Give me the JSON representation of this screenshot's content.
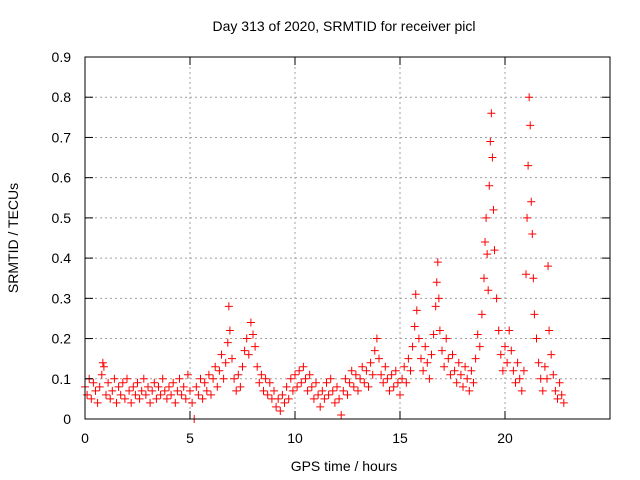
{
  "chart_data": {
    "type": "scatter",
    "title": "Day 313 of 2020, SRMTID for receiver picl",
    "xlabel": "GPS time / hours",
    "ylabel": "SRMTID / TECUs",
    "xlim": [
      0,
      25
    ],
    "ylim": [
      0,
      0.9
    ],
    "xticks": [
      0,
      5,
      10,
      15,
      20
    ],
    "xtick_labels": [
      "0",
      "5",
      "10",
      "15",
      "20"
    ],
    "yticks": [
      0,
      0.1,
      0.2,
      0.3,
      0.4,
      0.5,
      0.6,
      0.7,
      0.8,
      0.9
    ],
    "ytick_labels": [
      "0",
      "0.1",
      "0.2",
      "0.3",
      "0.4",
      "0.5",
      "0.6",
      "0.7",
      "0.8",
      "0.9"
    ],
    "grid": true,
    "marker": "+",
    "series_color": "#ff0000",
    "series": [
      {
        "name": "SRMTID",
        "points": [
          [
            0.0,
            0.08
          ],
          [
            0.1,
            0.06
          ],
          [
            0.2,
            0.1
          ],
          [
            0.3,
            0.05
          ],
          [
            0.4,
            0.09
          ],
          [
            0.5,
            0.07
          ],
          [
            0.6,
            0.04
          ],
          [
            0.7,
            0.08
          ],
          [
            0.8,
            0.11
          ],
          [
            0.85,
            0.14
          ],
          [
            0.9,
            0.13
          ],
          [
            1.0,
            0.06
          ],
          [
            1.1,
            0.09
          ],
          [
            1.2,
            0.05
          ],
          [
            1.3,
            0.07
          ],
          [
            1.4,
            0.1
          ],
          [
            1.5,
            0.04
          ],
          [
            1.6,
            0.08
          ],
          [
            1.7,
            0.06
          ],
          [
            1.8,
            0.09
          ],
          [
            1.9,
            0.05
          ],
          [
            2.0,
            0.1
          ],
          [
            2.1,
            0.07
          ],
          [
            2.2,
            0.04
          ],
          [
            2.3,
            0.08
          ],
          [
            2.4,
            0.06
          ],
          [
            2.5,
            0.09
          ],
          [
            2.6,
            0.05
          ],
          [
            2.7,
            0.07
          ],
          [
            2.8,
            0.1
          ],
          [
            2.9,
            0.06
          ],
          [
            3.0,
            0.08
          ],
          [
            3.1,
            0.04
          ],
          [
            3.2,
            0.07
          ],
          [
            3.3,
            0.09
          ],
          [
            3.4,
            0.05
          ],
          [
            3.5,
            0.08
          ],
          [
            3.6,
            0.06
          ],
          [
            3.7,
            0.1
          ],
          [
            3.8,
            0.07
          ],
          [
            3.9,
            0.05
          ],
          [
            4.0,
            0.08
          ],
          [
            4.1,
            0.06
          ],
          [
            4.2,
            0.09
          ],
          [
            4.3,
            0.04
          ],
          [
            4.4,
            0.07
          ],
          [
            4.5,
            0.1
          ],
          [
            4.6,
            0.06
          ],
          [
            4.7,
            0.08
          ],
          [
            4.8,
            0.05
          ],
          [
            4.9,
            0.11
          ],
          [
            5.0,
            0.07
          ],
          [
            5.1,
            0.04
          ],
          [
            5.2,
            0.0
          ],
          [
            5.3,
            0.08
          ],
          [
            5.4,
            0.06
          ],
          [
            5.5,
            0.1
          ],
          [
            5.6,
            0.05
          ],
          [
            5.7,
            0.09
          ],
          [
            5.8,
            0.07
          ],
          [
            5.9,
            0.11
          ],
          [
            6.0,
            0.06
          ],
          [
            6.1,
            0.1
          ],
          [
            6.2,
            0.13
          ],
          [
            6.3,
            0.08
          ],
          [
            6.4,
            0.12
          ],
          [
            6.5,
            0.16
          ],
          [
            6.6,
            0.1
          ],
          [
            6.7,
            0.14
          ],
          [
            6.8,
            0.19
          ],
          [
            6.85,
            0.28
          ],
          [
            6.9,
            0.22
          ],
          [
            7.0,
            0.15
          ],
          [
            7.1,
            0.1
          ],
          [
            7.2,
            0.07
          ],
          [
            7.3,
            0.11
          ],
          [
            7.4,
            0.08
          ],
          [
            7.5,
            0.13
          ],
          [
            7.6,
            0.17
          ],
          [
            7.7,
            0.2
          ],
          [
            7.8,
            0.16
          ],
          [
            7.9,
            0.24
          ],
          [
            8.0,
            0.21
          ],
          [
            8.1,
            0.18
          ],
          [
            8.2,
            0.13
          ],
          [
            8.3,
            0.09
          ],
          [
            8.4,
            0.11
          ],
          [
            8.5,
            0.07
          ],
          [
            8.6,
            0.1
          ],
          [
            8.7,
            0.06
          ],
          [
            8.8,
            0.09
          ],
          [
            8.9,
            0.05
          ],
          [
            9.0,
            0.07
          ],
          [
            9.1,
            0.03
          ],
          [
            9.2,
            0.05
          ],
          [
            9.3,
            0.02
          ],
          [
            9.4,
            0.06
          ],
          [
            9.5,
            0.04
          ],
          [
            9.6,
            0.08
          ],
          [
            9.7,
            0.05
          ],
          [
            9.8,
            0.1
          ],
          [
            9.9,
            0.07
          ],
          [
            10.0,
            0.11
          ],
          [
            10.1,
            0.08
          ],
          [
            10.2,
            0.12
          ],
          [
            10.3,
            0.09
          ],
          [
            10.4,
            0.13
          ],
          [
            10.5,
            0.1
          ],
          [
            10.6,
            0.07
          ],
          [
            10.7,
            0.11
          ],
          [
            10.8,
            0.08
          ],
          [
            10.9,
            0.05
          ],
          [
            11.0,
            0.09
          ],
          [
            11.1,
            0.06
          ],
          [
            11.2,
            0.03
          ],
          [
            11.3,
            0.07
          ],
          [
            11.4,
            0.05
          ],
          [
            11.5,
            0.09
          ],
          [
            11.6,
            0.06
          ],
          [
            11.7,
            0.1
          ],
          [
            11.8,
            0.07
          ],
          [
            11.9,
            0.04
          ],
          [
            12.0,
            0.08
          ],
          [
            12.1,
            0.05
          ],
          [
            12.2,
            0.01
          ],
          [
            12.3,
            0.07
          ],
          [
            12.4,
            0.1
          ],
          [
            12.5,
            0.06
          ],
          [
            12.6,
            0.09
          ],
          [
            12.7,
            0.12
          ],
          [
            12.8,
            0.08
          ],
          [
            12.9,
            0.11
          ],
          [
            13.0,
            0.07
          ],
          [
            13.1,
            0.1
          ],
          [
            13.2,
            0.13
          ],
          [
            13.3,
            0.09
          ],
          [
            13.4,
            0.12
          ],
          [
            13.5,
            0.08
          ],
          [
            13.6,
            0.14
          ],
          [
            13.7,
            0.11
          ],
          [
            13.8,
            0.17
          ],
          [
            13.9,
            0.2
          ],
          [
            14.0,
            0.15
          ],
          [
            14.1,
            0.11
          ],
          [
            14.2,
            0.09
          ],
          [
            14.3,
            0.13
          ],
          [
            14.4,
            0.1
          ],
          [
            14.5,
            0.07
          ],
          [
            14.6,
            0.11
          ],
          [
            14.7,
            0.08
          ],
          [
            14.8,
            0.12
          ],
          [
            14.9,
            0.09
          ],
          [
            15.0,
            0.06
          ],
          [
            15.1,
            0.1
          ],
          [
            15.2,
            0.13
          ],
          [
            15.3,
            0.09
          ],
          [
            15.4,
            0.15
          ],
          [
            15.5,
            0.12
          ],
          [
            15.6,
            0.18
          ],
          [
            15.7,
            0.23
          ],
          [
            15.75,
            0.31
          ],
          [
            15.8,
            0.27
          ],
          [
            15.9,
            0.2
          ],
          [
            16.0,
            0.15
          ],
          [
            16.1,
            0.12
          ],
          [
            16.2,
            0.18
          ],
          [
            16.3,
            0.14
          ],
          [
            16.4,
            0.1
          ],
          [
            16.5,
            0.16
          ],
          [
            16.6,
            0.21
          ],
          [
            16.7,
            0.28
          ],
          [
            16.75,
            0.34
          ],
          [
            16.8,
            0.39
          ],
          [
            16.85,
            0.3
          ],
          [
            16.9,
            0.22
          ],
          [
            17.0,
            0.17
          ],
          [
            17.1,
            0.13
          ],
          [
            17.2,
            0.2
          ],
          [
            17.3,
            0.15
          ],
          [
            17.4,
            0.11
          ],
          [
            17.5,
            0.16
          ],
          [
            17.6,
            0.12
          ],
          [
            17.7,
            0.09
          ],
          [
            17.8,
            0.14
          ],
          [
            17.9,
            0.11
          ],
          [
            18.0,
            0.08
          ],
          [
            18.1,
            0.13
          ],
          [
            18.2,
            0.1
          ],
          [
            18.3,
            0.07
          ],
          [
            18.4,
            0.12
          ],
          [
            18.5,
            0.09
          ],
          [
            18.6,
            0.15
          ],
          [
            18.7,
            0.21
          ],
          [
            18.8,
            0.18
          ],
          [
            18.9,
            0.26
          ],
          [
            19.0,
            0.35
          ],
          [
            19.05,
            0.44
          ],
          [
            19.1,
            0.5
          ],
          [
            19.15,
            0.41
          ],
          [
            19.2,
            0.32
          ],
          [
            19.25,
            0.58
          ],
          [
            19.3,
            0.69
          ],
          [
            19.35,
            0.76
          ],
          [
            19.4,
            0.65
          ],
          [
            19.45,
            0.52
          ],
          [
            19.5,
            0.42
          ],
          [
            19.6,
            0.3
          ],
          [
            19.7,
            0.22
          ],
          [
            19.8,
            0.16
          ],
          [
            19.9,
            0.12
          ],
          [
            20.0,
            0.18
          ],
          [
            20.1,
            0.14
          ],
          [
            20.2,
            0.22
          ],
          [
            20.3,
            0.17
          ],
          [
            20.4,
            0.12
          ],
          [
            20.5,
            0.09
          ],
          [
            20.6,
            0.14
          ],
          [
            20.7,
            0.1
          ],
          [
            20.8,
            0.07
          ],
          [
            20.9,
            0.12
          ],
          [
            21.0,
            0.36
          ],
          [
            21.05,
            0.5
          ],
          [
            21.1,
            0.63
          ],
          [
            21.15,
            0.8
          ],
          [
            21.2,
            0.73
          ],
          [
            21.25,
            0.54
          ],
          [
            21.3,
            0.46
          ],
          [
            21.35,
            0.35
          ],
          [
            21.4,
            0.26
          ],
          [
            21.5,
            0.2
          ],
          [
            21.6,
            0.14
          ],
          [
            21.7,
            0.1
          ],
          [
            21.8,
            0.07
          ],
          [
            21.9,
            0.13
          ],
          [
            22.0,
            0.1
          ],
          [
            22.05,
            0.38
          ],
          [
            22.1,
            0.22
          ],
          [
            22.2,
            0.16
          ],
          [
            22.3,
            0.11
          ],
          [
            22.4,
            0.07
          ],
          [
            22.5,
            0.05
          ],
          [
            22.6,
            0.09
          ],
          [
            22.7,
            0.06
          ],
          [
            22.8,
            0.04
          ]
        ]
      }
    ]
  }
}
